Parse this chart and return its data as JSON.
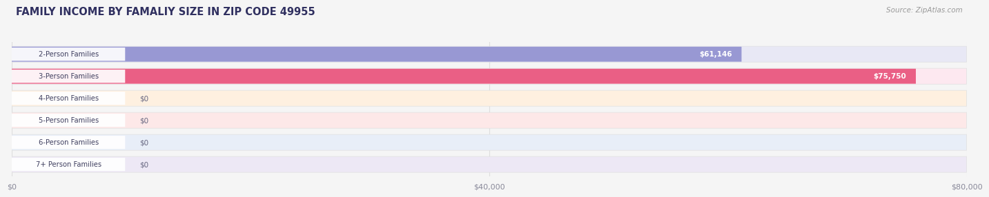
{
  "title": "FAMILY INCOME BY FAMALIY SIZE IN ZIP CODE 49955",
  "source": "Source: ZipAtlas.com",
  "categories": [
    "2-Person Families",
    "3-Person Families",
    "4-Person Families",
    "5-Person Families",
    "6-Person Families",
    "7+ Person Families"
  ],
  "values": [
    61146,
    75750,
    0,
    0,
    0,
    0
  ],
  "bar_colors": [
    "#9090d0",
    "#e8507a",
    "#f5bb85",
    "#f0a0a0",
    "#90aede",
    "#c0a0d5"
  ],
  "bar_bg_colors": [
    "#e8e8f5",
    "#fde8f0",
    "#fef0e0",
    "#fde8e8",
    "#e8eef8",
    "#ede8f5"
  ],
  "pill_colors": [
    "#c8c8e8",
    "#f8b0cc",
    "#fad8a8",
    "#f8c0c0",
    "#b8cce8",
    "#d8c0e8"
  ],
  "value_labels": [
    "$61,146",
    "$75,750",
    "$0",
    "$0",
    "$0",
    "$0"
  ],
  "xlim": [
    0,
    80000
  ],
  "xticks": [
    0,
    40000,
    80000
  ],
  "xtick_labels": [
    "$0",
    "$40,000",
    "$80,000"
  ],
  "title_color": "#303060",
  "source_color": "#999999",
  "background_color": "#f5f5f5",
  "grid_color": "#dddddd"
}
